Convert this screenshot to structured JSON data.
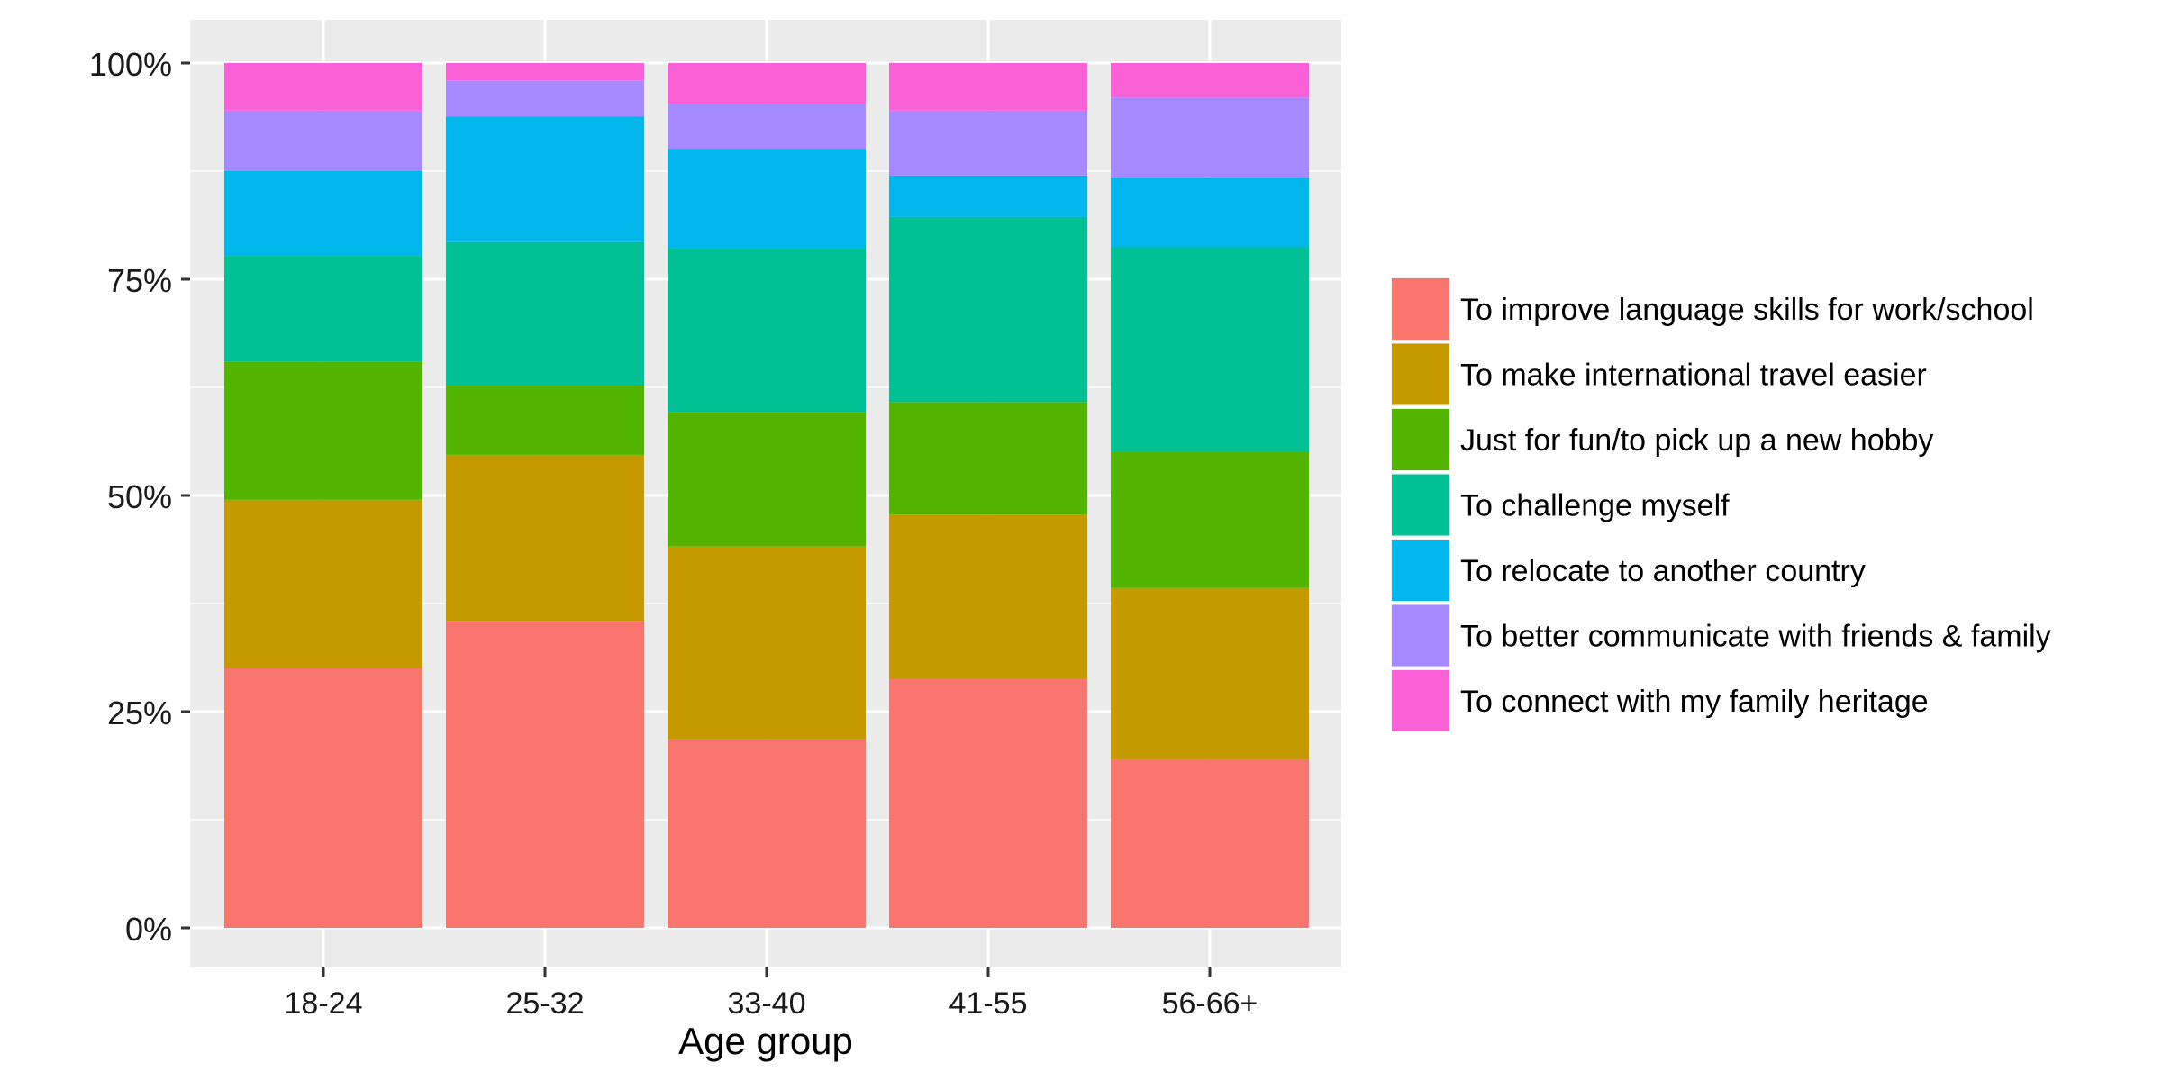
{
  "chart_data": {
    "type": "bar",
    "stacked": true,
    "percent": true,
    "title": "",
    "xlabel": "Age group",
    "ylabel": "",
    "ylim": [
      0,
      1
    ],
    "yticks": [
      "0%",
      "25%",
      "50%",
      "75%",
      "100%"
    ],
    "categories": [
      "18-24",
      "25-32",
      "33-40",
      "41-55",
      "56-66+"
    ],
    "grid": true,
    "legend_position": "right",
    "series": [
      {
        "name": "To improve language skills for work/school",
        "color": "#F8766D",
        "values": [
          0.3,
          0.355,
          0.218,
          0.288,
          0.195
        ]
      },
      {
        "name": "To make international travel easier",
        "color": "#C49A00",
        "values": [
          0.195,
          0.192,
          0.223,
          0.19,
          0.198
        ]
      },
      {
        "name": "Just for fun/to pick up a new hobby",
        "color": "#53B400",
        "values": [
          0.16,
          0.08,
          0.155,
          0.13,
          0.158
        ]
      },
      {
        "name": "To challenge myself",
        "color": "#00C094",
        "values": [
          0.122,
          0.166,
          0.19,
          0.214,
          0.236
        ]
      },
      {
        "name": "To relocate to another country",
        "color": "#00B6EB",
        "values": [
          0.098,
          0.145,
          0.115,
          0.048,
          0.08
        ]
      },
      {
        "name": "To better communicate with friends & family",
        "color": "#A58AFF",
        "values": [
          0.07,
          0.042,
          0.052,
          0.075,
          0.093
        ]
      },
      {
        "name": "To connect with my family heritage",
        "color": "#FB61D7",
        "values": [
          0.055,
          0.02,
          0.047,
          0.055,
          0.04
        ]
      }
    ]
  }
}
